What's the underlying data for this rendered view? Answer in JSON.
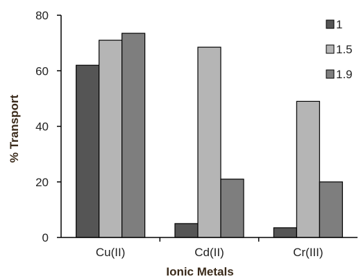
{
  "chart_data": {
    "type": "bar",
    "title": "",
    "xlabel": "Ionic Metals",
    "ylabel": "% Transport",
    "categories": [
      "Cu(II)",
      "Cd(II)",
      "Cr(III)"
    ],
    "ylim": [
      0,
      80
    ],
    "yticks": [
      "0",
      "20",
      "40",
      "60",
      "80"
    ],
    "grid": false,
    "legend_position": "top-right",
    "series": [
      {
        "name": "1",
        "values": [
          62,
          5,
          3.5
        ],
        "color": "#555555"
      },
      {
        "name": "1.5",
        "values": [
          71,
          68.5,
          49
        ],
        "color": "#b5b5b5"
      },
      {
        "name": "1.9",
        "values": [
          73.5,
          21,
          20
        ],
        "color": "#7e7e7e"
      }
    ]
  }
}
